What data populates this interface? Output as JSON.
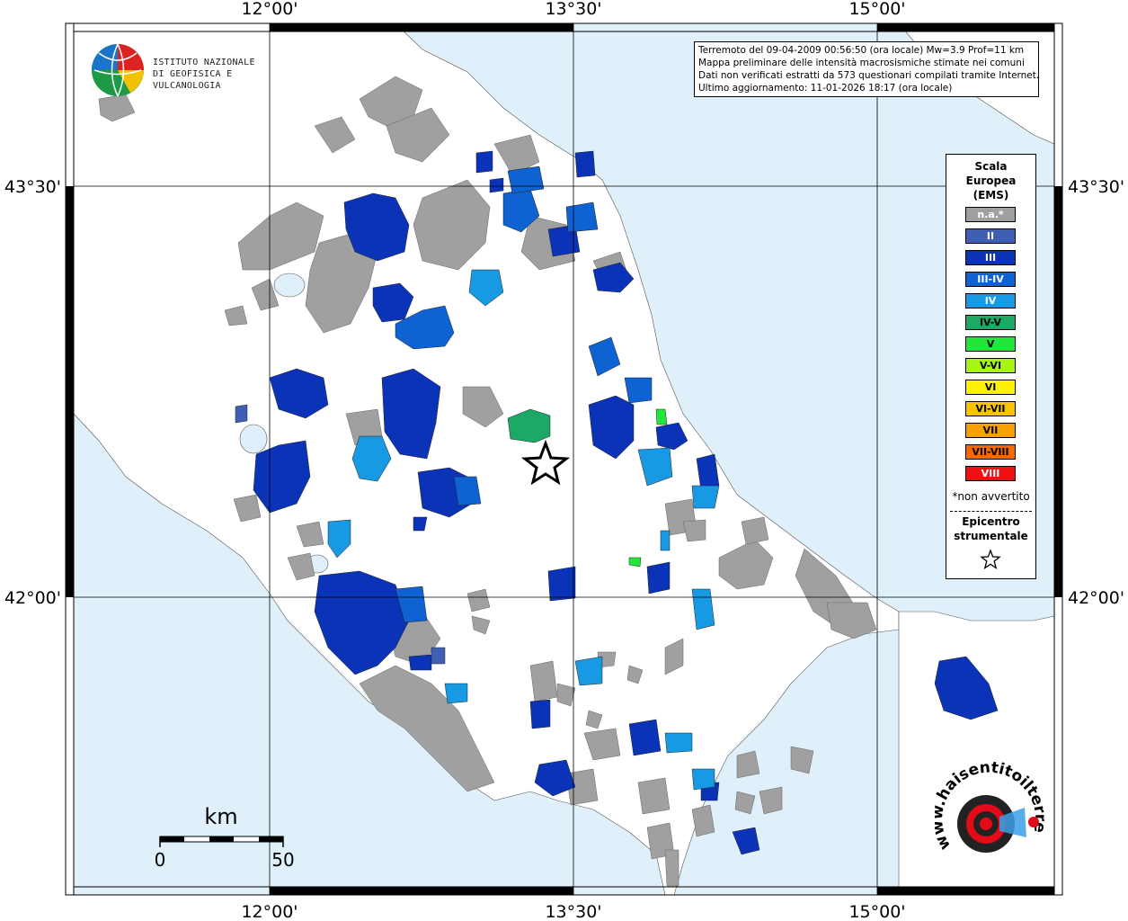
{
  "header": {
    "info_lines": [
      "Terremoto del 09-04-2009 00:56:50 (ora locale) Mw=3.9 Prof=11 km",
      "Mappa preliminare delle intensità macrosismiche stimate nei comuni",
      "Dati non verificati estratti da 573 questionari compilati tramite Internet.",
      "Ultimo aggiornamento: 11-01-2026 18:17 (ora locale)"
    ]
  },
  "logo": {
    "line1": "ISTITUTO NAZIONALE",
    "line2": "DI GEOFISICA E VULCANOLOGIA",
    "icon": "ingv-globe-icon"
  },
  "axes": {
    "top_labels": [
      "12°00'",
      "13°30'",
      "15°00'"
    ],
    "bottom_labels": [
      "12°00'",
      "13°30'",
      "15°00'"
    ],
    "left_labels": [
      "43°30'",
      "42°00'"
    ],
    "right_labels": [
      "43°30'",
      "42°00'"
    ]
  },
  "legend": {
    "title_lines": [
      "Scala",
      "Europea",
      "(EMS)"
    ],
    "items": [
      {
        "label": "n.a.*",
        "color": "#a0a0a0",
        "text_color": "#ffffff"
      },
      {
        "label": "II",
        "color": "#3f5fb5",
        "text_color": "#ffffff"
      },
      {
        "label": "III",
        "color": "#0a33b8",
        "text_color": "#ffffff"
      },
      {
        "label": "III-IV",
        "color": "#0f62d2",
        "text_color": "#ffffff"
      },
      {
        "label": "IV",
        "color": "#1899e3",
        "text_color": "#ffffff"
      },
      {
        "label": "IV-V",
        "color": "#1ca865",
        "text_color": "#000000"
      },
      {
        "label": "V",
        "color": "#22e63a",
        "text_color": "#000000"
      },
      {
        "label": "V-VI",
        "color": "#a6f516",
        "text_color": "#000000"
      },
      {
        "label": "VI",
        "color": "#fff200",
        "text_color": "#000000"
      },
      {
        "label": "VI-VII",
        "color": "#f8c400",
        "text_color": "#000000"
      },
      {
        "label": "VII",
        "color": "#f6a100",
        "text_color": "#000000"
      },
      {
        "label": "VII-VIII",
        "color": "#f26a00",
        "text_color": "#000000"
      },
      {
        "label": "VIII",
        "color": "#ee1111",
        "text_color": "#ffffff"
      }
    ],
    "note": "*non avvertito",
    "epicenter_lines": [
      "Epicentro",
      "strumentale"
    ],
    "epicenter_icon": "star-icon"
  },
  "scale_bar": {
    "unit": "km",
    "min_label": "0",
    "max_label": "50"
  },
  "badge": {
    "text": "www.haisentitoilterremoto.it",
    "icon": "seismo-badge-icon"
  },
  "colors": {
    "sea": "#dff0fb",
    "land": "#ffffff",
    "na": "#a0a0a0",
    "ii": "#3f5fb5",
    "iii": "#0a33b8",
    "iiiiv": "#0f62d2",
    "iv": "#1899e3",
    "ivv": "#1ca865",
    "v": "#22e63a"
  }
}
